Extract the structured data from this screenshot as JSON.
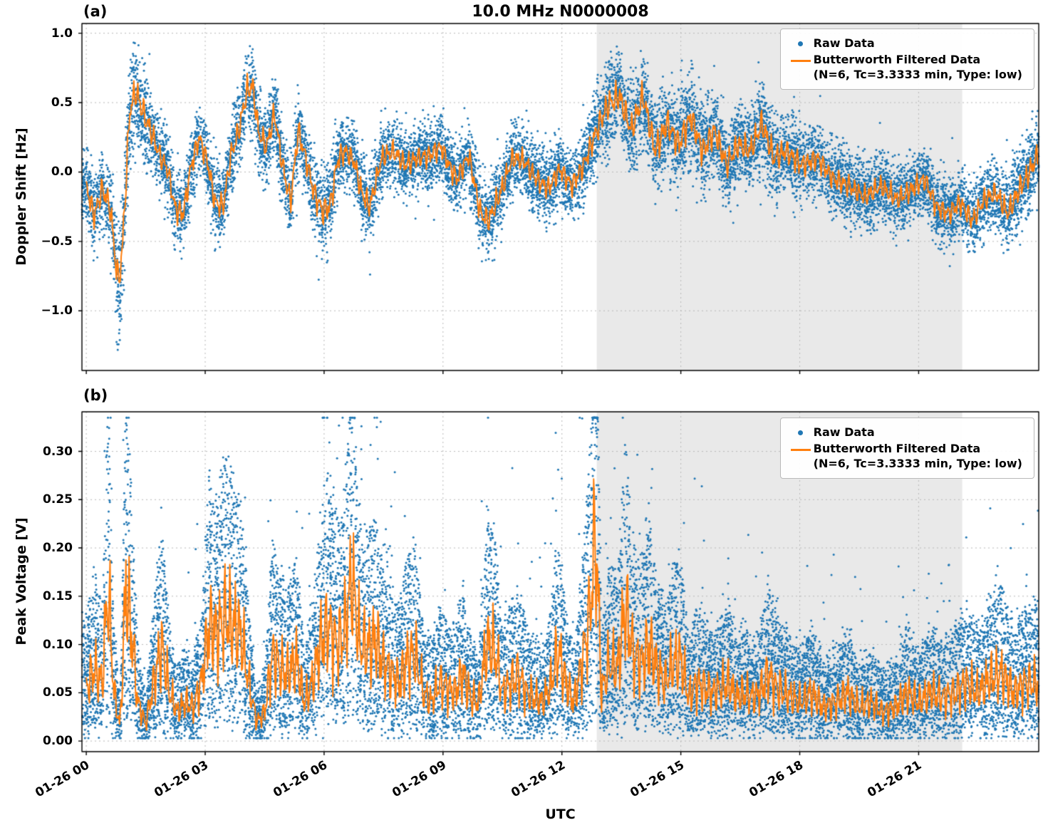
{
  "figure": {
    "title": "10.0 MHz N0000008",
    "panel_a_label": "(a)",
    "panel_b_label": "(b)",
    "xlabel": "UTC"
  },
  "colors": {
    "raw": "#1f77b4",
    "filtered": "#ff7f0e",
    "shade": "#e9e9e9",
    "grid": "#b8b8b8"
  },
  "legend": {
    "raw_label": "Raw Data",
    "filtered_label": "Butterworth Filtered Data",
    "filtered_sublabel": "(N=6, Tc=3.3333 min, Type: low)"
  },
  "xticks": {
    "values": [
      0,
      3,
      6,
      9,
      12,
      15,
      18,
      21
    ],
    "labels": [
      "01-26 00",
      "01-26 03",
      "01-26 06",
      "01-26 09",
      "01-26 12",
      "01-26 15",
      "01-26 18",
      "01-26 21"
    ]
  },
  "chart_data": [
    {
      "panel": "a",
      "type": "scatter",
      "ylabel": "Doppler Shift [Hz]",
      "ylim": [
        -1.43,
        1.07
      ],
      "xlim": [
        -0.11,
        24.03
      ],
      "yticks": [
        1.0,
        0.5,
        0.0,
        -0.5,
        -1.0
      ],
      "ytick_labels": [
        "1.0",
        "0.5",
        "0.0",
        "−0.5",
        "−1.0"
      ],
      "shaded_region_x": [
        12.88,
        22.1
      ],
      "noise_seed": 42,
      "series": [
        {
          "name": "Raw Data",
          "type": "scatter",
          "color": "#1f77b4",
          "count": 14000
        },
        {
          "name": "Butterworth Filtered Data (N=6, Tc=3.3333 min, Type: low)",
          "type": "line",
          "color": "#ff7f0e",
          "control_points": [
            [
              0.0,
              -0.1,
              0.25
            ],
            [
              0.2,
              -0.32,
              0.25
            ],
            [
              0.4,
              -0.12,
              0.25
            ],
            [
              0.6,
              -0.25,
              0.28
            ],
            [
              0.8,
              -0.8,
              0.4
            ],
            [
              0.9,
              -0.6,
              0.35
            ],
            [
              1.1,
              0.45,
              0.32
            ],
            [
              1.25,
              0.58,
              0.3
            ],
            [
              1.45,
              0.42,
              0.3
            ],
            [
              1.65,
              0.28,
              0.25
            ],
            [
              1.85,
              0.12,
              0.22
            ],
            [
              2.05,
              0.02,
              0.22
            ],
            [
              2.25,
              -0.27,
              0.25
            ],
            [
              2.45,
              -0.3,
              0.25
            ],
            [
              2.65,
              0.05,
              0.25
            ],
            [
              2.85,
              0.25,
              0.22
            ],
            [
              3.05,
              0.08,
              0.22
            ],
            [
              3.25,
              -0.22,
              0.25
            ],
            [
              3.45,
              -0.25,
              0.25
            ],
            [
              3.65,
              0.12,
              0.25
            ],
            [
              3.85,
              0.3,
              0.25
            ],
            [
              4.05,
              0.58,
              0.28
            ],
            [
              4.2,
              0.62,
              0.25
            ],
            [
              4.35,
              0.28,
              0.25
            ],
            [
              4.55,
              0.18,
              0.25
            ],
            [
              4.75,
              0.42,
              0.25
            ],
            [
              4.95,
              0.05,
              0.25
            ],
            [
              5.15,
              -0.22,
              0.25
            ],
            [
              5.35,
              0.3,
              0.25
            ],
            [
              5.55,
              0.08,
              0.25
            ],
            [
              5.75,
              -0.15,
              0.27
            ],
            [
              5.95,
              -0.28,
              0.3
            ],
            [
              6.15,
              -0.25,
              0.28
            ],
            [
              6.35,
              0.1,
              0.25
            ],
            [
              6.55,
              0.15,
              0.22
            ],
            [
              6.75,
              0.08,
              0.22
            ],
            [
              6.95,
              -0.15,
              0.25
            ],
            [
              7.15,
              -0.25,
              0.25
            ],
            [
              7.45,
              0.1,
              0.22
            ],
            [
              7.75,
              0.15,
              0.22
            ],
            [
              8.05,
              0.05,
              0.22
            ],
            [
              8.35,
              0.1,
              0.22
            ],
            [
              8.65,
              0.12,
              0.22
            ],
            [
              8.95,
              0.18,
              0.22
            ],
            [
              9.15,
              0.05,
              0.22
            ],
            [
              9.35,
              -0.05,
              0.22
            ],
            [
              9.65,
              0.12,
              0.22
            ],
            [
              9.95,
              -0.3,
              0.25
            ],
            [
              10.15,
              -0.35,
              0.25
            ],
            [
              10.45,
              -0.15,
              0.25
            ],
            [
              10.75,
              0.1,
              0.22
            ],
            [
              11.05,
              0.08,
              0.22
            ],
            [
              11.35,
              -0.05,
              0.22
            ],
            [
              11.65,
              -0.12,
              0.22
            ],
            [
              11.95,
              0.02,
              0.22
            ],
            [
              12.25,
              -0.1,
              0.22
            ],
            [
              12.55,
              0.05,
              0.24
            ],
            [
              12.85,
              0.28,
              0.26
            ],
            [
              13.15,
              0.48,
              0.3
            ],
            [
              13.45,
              0.55,
              0.3
            ],
            [
              13.75,
              0.3,
              0.3
            ],
            [
              14.05,
              0.55,
              0.3
            ],
            [
              14.35,
              0.15,
              0.3
            ],
            [
              14.65,
              0.35,
              0.3
            ],
            [
              14.95,
              0.2,
              0.3
            ],
            [
              15.25,
              0.4,
              0.3
            ],
            [
              15.55,
              0.15,
              0.3
            ],
            [
              15.85,
              0.3,
              0.27
            ],
            [
              16.15,
              0.05,
              0.27
            ],
            [
              16.45,
              0.2,
              0.27
            ],
            [
              16.75,
              0.15,
              0.27
            ],
            [
              17.05,
              0.35,
              0.3
            ],
            [
              17.35,
              0.1,
              0.27
            ],
            [
              17.65,
              0.15,
              0.25
            ],
            [
              18.05,
              0.05,
              0.25
            ],
            [
              18.45,
              0.1,
              0.22
            ],
            [
              18.85,
              -0.05,
              0.22
            ],
            [
              19.25,
              -0.1,
              0.22
            ],
            [
              19.65,
              -0.18,
              0.22
            ],
            [
              20.05,
              -0.1,
              0.22
            ],
            [
              20.45,
              -0.2,
              0.22
            ],
            [
              20.85,
              -0.12,
              0.22
            ],
            [
              21.15,
              -0.05,
              0.22
            ],
            [
              21.45,
              -0.25,
              0.22
            ],
            [
              21.75,
              -0.3,
              0.22
            ],
            [
              22.05,
              -0.22,
              0.22
            ],
            [
              22.35,
              -0.35,
              0.22
            ],
            [
              22.65,
              -0.2,
              0.22
            ],
            [
              22.95,
              -0.15,
              0.22
            ],
            [
              23.25,
              -0.3,
              0.24
            ],
            [
              23.55,
              -0.12,
              0.25
            ],
            [
              23.8,
              0.0,
              0.26
            ],
            [
              24.0,
              0.12,
              0.26
            ]
          ]
        }
      ]
    },
    {
      "panel": "b",
      "type": "scatter",
      "ylabel": "Peak Voltage [V]",
      "ylim": [
        -0.011,
        0.341
      ],
      "xlim": [
        -0.11,
        24.03
      ],
      "yticks": [
        0.3,
        0.25,
        0.2,
        0.15,
        0.1,
        0.05,
        0.0
      ],
      "ytick_labels": [
        "0.30",
        "0.25",
        "0.20",
        "0.15",
        "0.10",
        "0.05",
        "0.00"
      ],
      "shaded_region_x": [
        12.88,
        22.1
      ],
      "noise_seed": 7,
      "series": [
        {
          "name": "Raw Data",
          "type": "scatter",
          "color": "#1f77b4",
          "count": 16000
        },
        {
          "name": "Butterworth Filtered Data (N=6, Tc=3.3333 min, Type: low)",
          "type": "line",
          "color": "#ff7f0e",
          "control_points": [
            [
              0.0,
              0.055
            ],
            [
              0.2,
              0.075
            ],
            [
              0.4,
              0.06
            ],
            [
              0.55,
              0.16
            ],
            [
              0.7,
              0.05
            ],
            [
              0.85,
              0.015
            ],
            [
              1.0,
              0.16
            ],
            [
              1.15,
              0.11
            ],
            [
              1.3,
              0.04
            ],
            [
              1.5,
              0.018
            ],
            [
              1.7,
              0.06
            ],
            [
              1.9,
              0.1
            ],
            [
              2.1,
              0.05
            ],
            [
              2.3,
              0.03
            ],
            [
              2.5,
              0.04
            ],
            [
              2.7,
              0.035
            ],
            [
              2.9,
              0.06
            ],
            [
              3.1,
              0.12
            ],
            [
              3.3,
              0.11
            ],
            [
              3.5,
              0.13
            ],
            [
              3.7,
              0.12
            ],
            [
              3.9,
              0.11
            ],
            [
              4.1,
              0.06
            ],
            [
              4.3,
              0.02
            ],
            [
              4.5,
              0.03
            ],
            [
              4.7,
              0.09
            ],
            [
              4.9,
              0.075
            ],
            [
              5.1,
              0.07
            ],
            [
              5.3,
              0.085
            ],
            [
              5.5,
              0.04
            ],
            [
              5.7,
              0.06
            ],
            [
              5.9,
              0.1
            ],
            [
              6.1,
              0.12
            ],
            [
              6.3,
              0.1
            ],
            [
              6.5,
              0.11
            ],
            [
              6.7,
              0.17
            ],
            [
              6.9,
              0.1
            ],
            [
              7.1,
              0.095
            ],
            [
              7.3,
              0.105
            ],
            [
              7.5,
              0.08
            ],
            [
              7.7,
              0.07
            ],
            [
              7.9,
              0.06
            ],
            [
              8.1,
              0.085
            ],
            [
              8.3,
              0.09
            ],
            [
              8.5,
              0.05
            ],
            [
              8.7,
              0.04
            ],
            [
              8.9,
              0.06
            ],
            [
              9.1,
              0.055
            ],
            [
              9.3,
              0.05
            ],
            [
              9.5,
              0.07
            ],
            [
              9.7,
              0.045
            ],
            [
              9.9,
              0.04
            ],
            [
              10.1,
              0.1
            ],
            [
              10.3,
              0.095
            ],
            [
              10.5,
              0.05
            ],
            [
              10.7,
              0.06
            ],
            [
              10.9,
              0.07
            ],
            [
              11.1,
              0.05
            ],
            [
              11.3,
              0.045
            ],
            [
              11.5,
              0.04
            ],
            [
              11.7,
              0.055
            ],
            [
              11.9,
              0.095
            ],
            [
              12.1,
              0.06
            ],
            [
              12.3,
              0.04
            ],
            [
              12.5,
              0.08
            ],
            [
              12.7,
              0.13
            ],
            [
              12.85,
              0.22
            ],
            [
              13.0,
              0.05
            ],
            [
              13.2,
              0.08
            ],
            [
              13.4,
              0.075
            ],
            [
              13.6,
              0.14
            ],
            [
              13.8,
              0.09
            ],
            [
              14.0,
              0.08
            ],
            [
              14.2,
              0.1
            ],
            [
              14.4,
              0.075
            ],
            [
              14.6,
              0.06
            ],
            [
              14.8,
              0.08
            ],
            [
              15.0,
              0.085
            ],
            [
              15.2,
              0.045
            ],
            [
              15.4,
              0.06
            ],
            [
              15.6,
              0.055
            ],
            [
              15.8,
              0.05
            ],
            [
              16.0,
              0.055
            ],
            [
              16.2,
              0.06
            ],
            [
              16.4,
              0.045
            ],
            [
              16.6,
              0.05
            ],
            [
              16.8,
              0.045
            ],
            [
              17.0,
              0.05
            ],
            [
              17.2,
              0.07
            ],
            [
              17.4,
              0.055
            ],
            [
              17.6,
              0.05
            ],
            [
              17.8,
              0.045
            ],
            [
              18.0,
              0.04
            ],
            [
              18.3,
              0.05
            ],
            [
              18.6,
              0.035
            ],
            [
              18.9,
              0.04
            ],
            [
              19.2,
              0.05
            ],
            [
              19.5,
              0.035
            ],
            [
              19.8,
              0.04
            ],
            [
              20.1,
              0.03
            ],
            [
              20.4,
              0.035
            ],
            [
              20.7,
              0.05
            ],
            [
              21.0,
              0.04
            ],
            [
              21.3,
              0.05
            ],
            [
              21.6,
              0.045
            ],
            [
              21.9,
              0.05
            ],
            [
              22.2,
              0.06
            ],
            [
              22.5,
              0.05
            ],
            [
              22.8,
              0.065
            ],
            [
              23.1,
              0.07
            ],
            [
              23.4,
              0.05
            ],
            [
              23.7,
              0.06
            ],
            [
              24.0,
              0.06
            ]
          ]
        }
      ]
    }
  ]
}
